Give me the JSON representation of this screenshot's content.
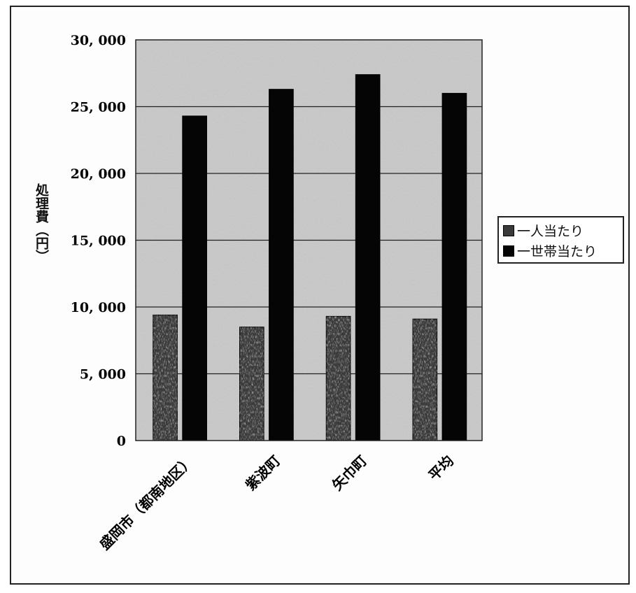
{
  "chart_data": {
    "type": "bar",
    "categories": [
      "盛岡市（都南地区）",
      "紫波町",
      "矢巾町",
      "平均"
    ],
    "series": [
      {
        "name": "一人当たり",
        "values": [
          9400,
          8500,
          9300,
          9100
        ],
        "color": "#3a3a3a"
      },
      {
        "name": "一世帯当たり",
        "values": [
          24300,
          26300,
          27400,
          26000
        ],
        "color": "#050505"
      }
    ],
    "title": "",
    "xlabel": "",
    "ylabel": "処理費（円）",
    "ylim": [
      0,
      30000
    ],
    "yticks": [
      "0",
      "5, 000",
      "10, 000",
      "15, 000",
      "20, 000",
      "25, 000",
      "30, 000"
    ],
    "grid": true,
    "legend_position": "right"
  }
}
